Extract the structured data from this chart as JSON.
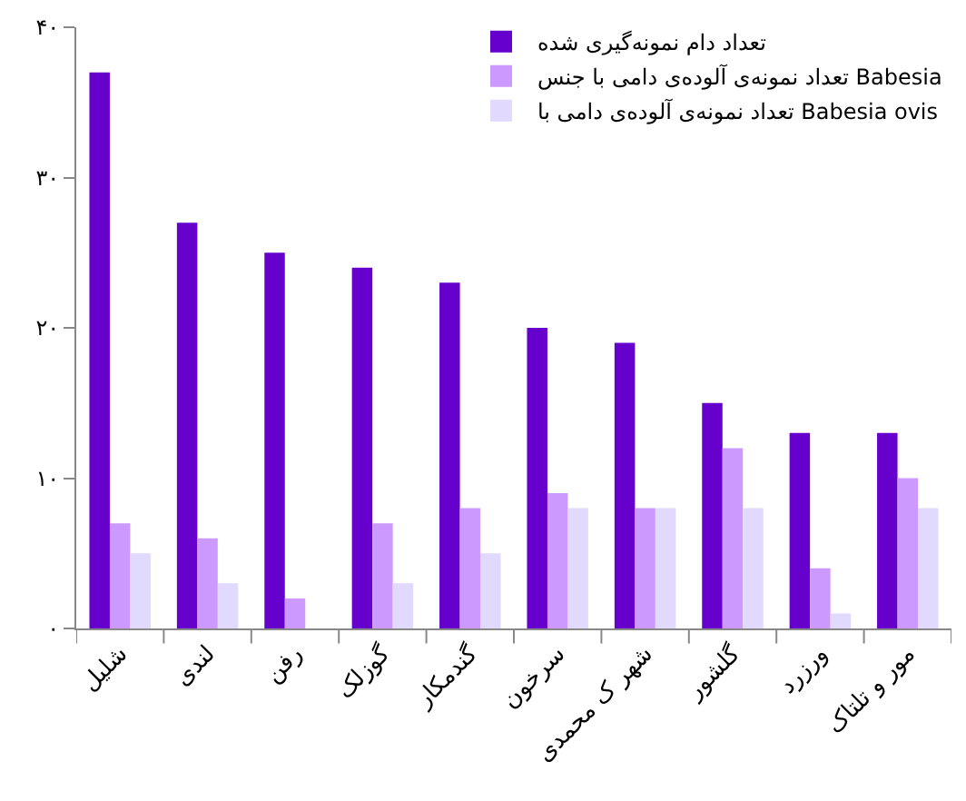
{
  "chart_data": {
    "type": "bar",
    "categories": [
      "شلیل",
      "لندی",
      "رفن",
      "گوزلک",
      "گندمکار",
      "سرخون",
      "شهر ک محمدی",
      "گلشور",
      "ورزرد",
      "مور و تلتاک"
    ],
    "series": [
      {
        "name": "تعداد دام نمونه‌گیری شده",
        "color": "#6600cc",
        "values": [
          37,
          27,
          25,
          24,
          23,
          20,
          19,
          15,
          13,
          13
        ]
      },
      {
        "name": "تعداد نمونه‌ی آلوده‌ی دامی با جنس Babesia",
        "color": "#cc99ff",
        "values": [
          7,
          6,
          2,
          7,
          8,
          9,
          8,
          12,
          4,
          10
        ]
      },
      {
        "name": "تعداد نمونه‌ی آلوده‌ی دامی با Babesia ovis",
        "color": "#e2d9ff",
        "values": [
          5,
          3,
          0,
          3,
          5,
          8,
          8,
          8,
          1,
          8
        ]
      }
    ],
    "ylim": [
      0,
      40
    ],
    "yticks": [
      {
        "value": 0,
        "label": "۰"
      },
      {
        "value": 10,
        "label": "۱۰"
      },
      {
        "value": 20,
        "label": "۲۰"
      },
      {
        "value": 30,
        "label": "۳۰"
      },
      {
        "value": 40,
        "label": "۴۰"
      }
    ],
    "legend": "top right"
  }
}
